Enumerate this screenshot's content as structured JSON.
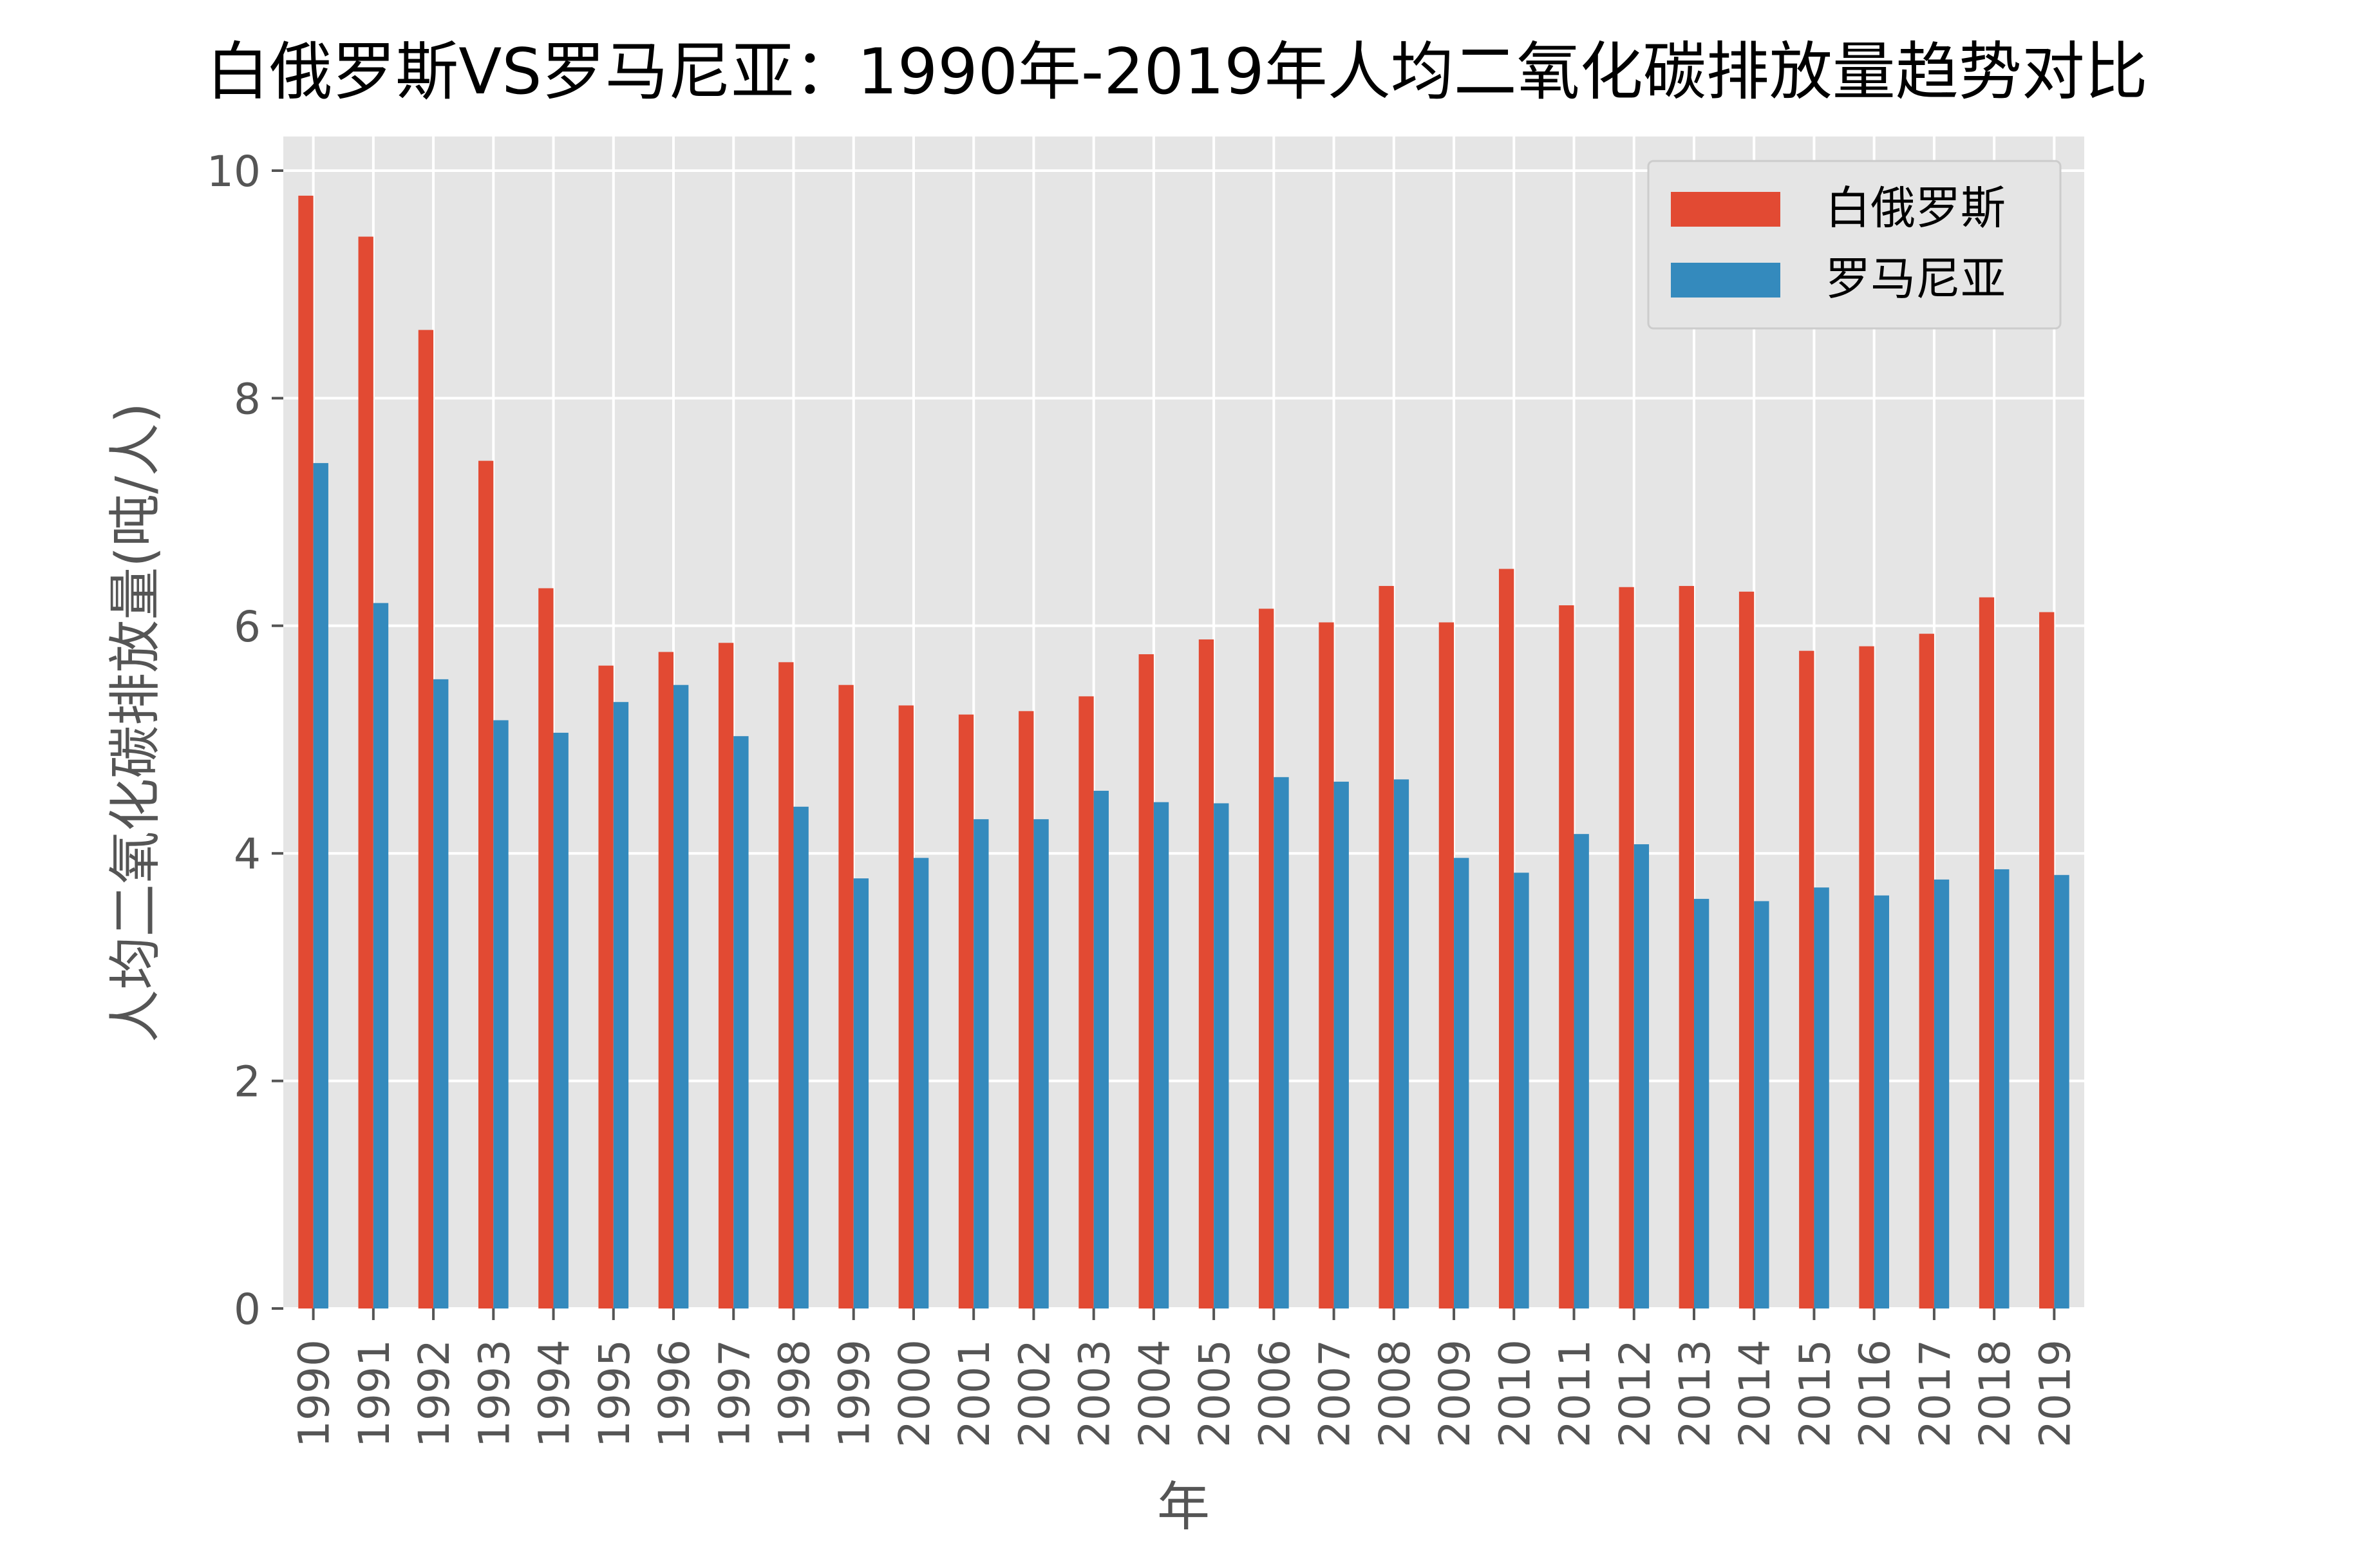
{
  "chart_data": {
    "type": "bar",
    "title": "白俄罗斯VS罗马尼亚：1990年-2019年人均二氧化碳排放量趋势对比",
    "xlabel": "年",
    "ylabel": "人均二氧化碳排放量(吨/人)",
    "ylim": [
      0,
      10.3
    ],
    "yticks": [
      0,
      2,
      4,
      6,
      8,
      10
    ],
    "grid": true,
    "legend_position": "top-right",
    "categories": [
      "1990",
      "1991",
      "1992",
      "1993",
      "1994",
      "1995",
      "1996",
      "1997",
      "1998",
      "1999",
      "2000",
      "2001",
      "2002",
      "2003",
      "2004",
      "2005",
      "2006",
      "2007",
      "2008",
      "2009",
      "2010",
      "2011",
      "2012",
      "2013",
      "2014",
      "2015",
      "2016",
      "2017",
      "2018",
      "2019"
    ],
    "series": [
      {
        "name": "白俄罗斯",
        "color": "#E24A33",
        "values": [
          9.78,
          9.42,
          8.6,
          7.45,
          6.33,
          5.65,
          5.77,
          5.85,
          5.68,
          5.48,
          5.3,
          5.22,
          5.25,
          5.38,
          5.75,
          5.88,
          6.15,
          6.03,
          6.35,
          6.03,
          6.5,
          6.18,
          6.34,
          6.35,
          6.3,
          5.78,
          5.82,
          5.93,
          6.25,
          6.12
        ]
      },
      {
        "name": "罗马尼亚",
        "color": "#348ABD",
        "values": [
          7.43,
          6.2,
          5.53,
          5.17,
          5.06,
          5.33,
          5.48,
          5.03,
          4.41,
          3.78,
          3.96,
          4.3,
          4.3,
          4.55,
          4.45,
          4.44,
          4.67,
          4.63,
          4.65,
          3.96,
          3.83,
          4.17,
          4.08,
          3.6,
          3.58,
          3.7,
          3.63,
          3.77,
          3.86,
          3.81
        ]
      }
    ]
  }
}
